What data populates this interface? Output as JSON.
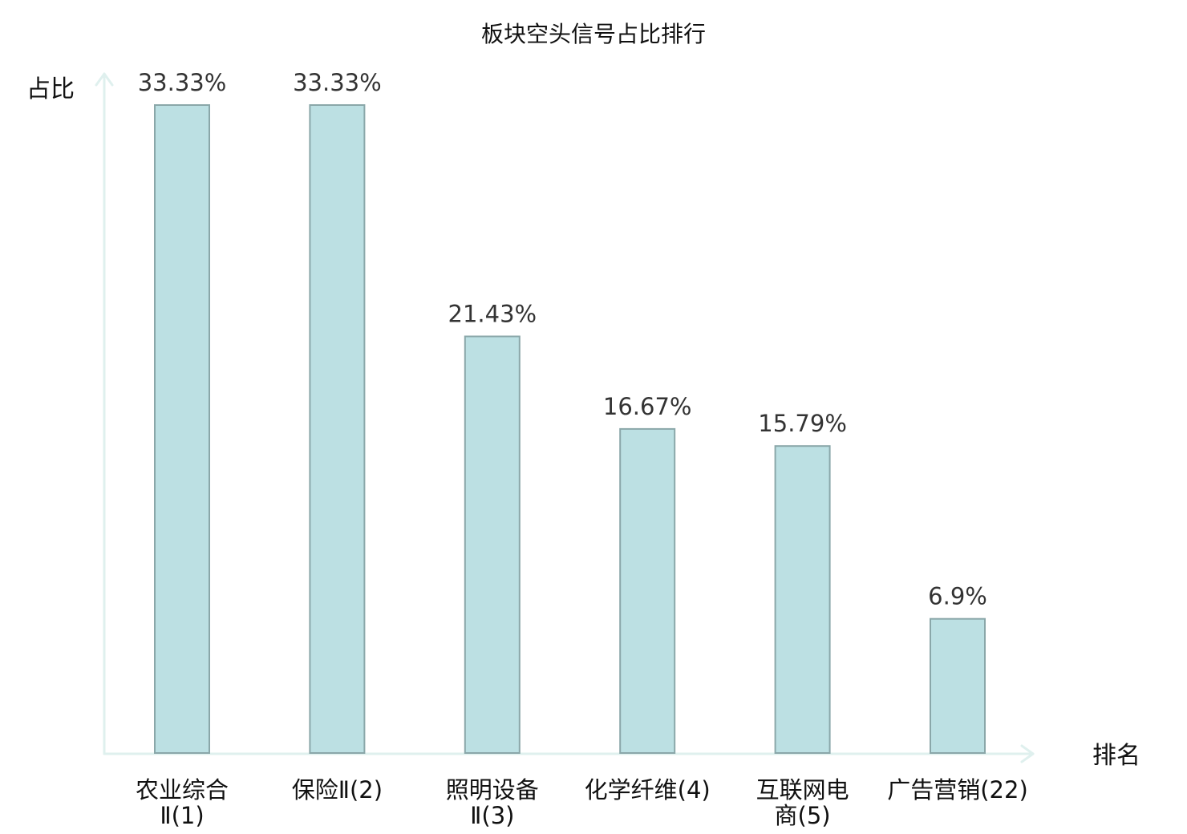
{
  "chart_data": {
    "type": "bar",
    "title": "板块空头信号占比排行",
    "ylabel": "占比",
    "xlabel": "排名",
    "ylim": [
      0,
      35
    ],
    "grid": false,
    "categories": [
      {
        "lines": [
          "农业综合",
          "Ⅱ(1)"
        ],
        "highlight": false
      },
      {
        "lines": [
          "保险Ⅱ(2)"
        ],
        "highlight": false
      },
      {
        "lines": [
          "照明设备",
          "Ⅱ(3)"
        ],
        "highlight": false
      },
      {
        "lines": [
          "化学纤维(4)"
        ],
        "highlight": false
      },
      {
        "lines": [
          "互联网电",
          "商(5)"
        ],
        "highlight": false
      },
      {
        "lines": [
          "广告营销(22)"
        ],
        "highlight": true
      }
    ],
    "values": [
      33.33,
      33.33,
      21.43,
      16.67,
      15.79,
      6.9
    ],
    "value_labels": [
      "33.33%",
      "33.33%",
      "21.43%",
      "16.67%",
      "15.79%",
      "6.9%"
    ],
    "colors": {
      "bar_fill": "#bce0e3",
      "bar_stroke": "#8aa7a9",
      "axis": "#dff0ee",
      "highlight_label": "#e0201c",
      "label": "#111111",
      "value_label": "#333333"
    }
  }
}
